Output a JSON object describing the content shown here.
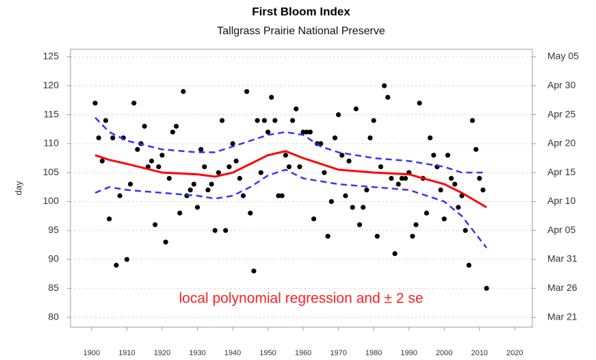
{
  "chart_data": {
    "type": "scatter",
    "title": "First Bloom Index",
    "subtitle": "Tallgrass Prairie National Preserve",
    "y_label": "day",
    "annotation": "local polynomial regression and ± 2 se",
    "xlim": [
      1894,
      2025
    ],
    "xticks": [
      1900,
      1910,
      1920,
      1930,
      1940,
      1950,
      1960,
      1970,
      1980,
      1990,
      2000,
      2010,
      2020
    ],
    "ylim": [
      78.3,
      126.3
    ],
    "yticks": [
      80,
      85,
      90,
      95,
      100,
      105,
      110,
      115,
      120,
      125
    ],
    "y2lim": [
      78.3,
      126.3
    ],
    "y2ticks": [
      {
        "value": 80,
        "label": "Mar 21"
      },
      {
        "value": 85,
        "label": "Mar 26"
      },
      {
        "value": 90,
        "label": "Mar 31"
      },
      {
        "value": 95,
        "label": "Apr 05"
      },
      {
        "value": 100,
        "label": "Apr 10"
      },
      {
        "value": 105,
        "label": "Apr 15"
      },
      {
        "value": 110,
        "label": "Apr 20"
      },
      {
        "value": 115,
        "label": "Apr 25"
      },
      {
        "value": 120,
        "label": "Apr 30"
      },
      {
        "value": 125,
        "label": "May 05"
      }
    ],
    "grid": true,
    "points": {
      "color": "#000000",
      "x": [
        1901,
        1902,
        1903,
        1904,
        1905,
        1906,
        1907,
        1908,
        1909,
        1910,
        1911,
        1912,
        1913,
        1914,
        1915,
        1916,
        1917,
        1918,
        1919,
        1920,
        1921,
        1922,
        1923,
        1924,
        1925,
        1926,
        1927,
        1928,
        1929,
        1930,
        1931,
        1932,
        1933,
        1934,
        1935,
        1936,
        1937,
        1938,
        1939,
        1940,
        1941,
        1942,
        1943,
        1944,
        1945,
        1946,
        1947,
        1948,
        1949,
        1950,
        1951,
        1952,
        1953,
        1954,
        1955,
        1956,
        1957,
        1958,
        1959,
        1960,
        1961,
        1962,
        1963,
        1964,
        1965,
        1966,
        1967,
        1968,
        1969,
        1970,
        1971,
        1972,
        1973,
        1974,
        1975,
        1976,
        1977,
        1978,
        1979,
        1980,
        1981,
        1982,
        1983,
        1984,
        1985,
        1986,
        1987,
        1988,
        1989,
        1990,
        1991,
        1992,
        1993,
        1994,
        1995,
        1996,
        1997,
        1998,
        1999,
        2000,
        2001,
        2002,
        2003,
        2004,
        2005,
        2006,
        2007,
        2008,
        2009,
        2010,
        2011,
        2012
      ],
      "values": [
        117,
        111,
        107,
        114,
        97,
        111,
        89,
        101,
        111,
        90,
        103,
        117,
        109,
        110,
        113,
        106,
        107,
        96,
        106,
        108,
        93,
        104,
        112,
        113,
        98,
        119,
        101,
        102,
        103,
        99,
        109,
        106,
        102,
        103,
        95,
        105,
        114,
        95,
        106,
        110,
        107,
        104,
        101,
        119,
        98,
        88,
        114,
        105,
        114,
        112,
        118,
        114,
        101,
        101,
        108,
        106,
        114,
        116,
        106,
        112,
        112,
        112,
        97,
        110,
        110,
        105,
        94,
        100,
        111,
        115,
        108,
        101,
        107,
        99,
        116,
        96,
        99,
        102,
        111,
        114,
        94,
        106,
        120,
        118,
        104,
        91,
        103,
        104,
        104,
        105,
        94,
        96,
        117,
        104,
        98,
        111,
        108,
        106,
        102,
        97,
        108,
        104,
        103,
        99,
        101,
        95,
        89,
        114,
        109,
        104,
        102,
        85
      ]
    },
    "fit": {
      "color": "#ff0000",
      "band_color": "#3333ff",
      "x": [
        1901,
        1905,
        1910,
        1920,
        1930,
        1935,
        1940,
        1945,
        1950,
        1955,
        1960,
        1965,
        1970,
        1980,
        1990,
        2000,
        2005,
        2012
      ],
      "values": [
        108,
        107.2,
        106.5,
        105,
        104.7,
        104.3,
        105,
        106.5,
        108,
        108.7,
        107.5,
        106.5,
        105.5,
        105,
        104.7,
        103,
        101.5,
        99
      ],
      "upper": [
        114.5,
        112,
        110.5,
        109,
        108.5,
        108.5,
        109.5,
        110.5,
        111.5,
        112,
        111.5,
        109.5,
        108.5,
        107.5,
        107,
        106,
        105,
        105
      ],
      "lower": [
        101.5,
        102.5,
        102,
        101.5,
        101,
        100.5,
        101,
        102.5,
        104.5,
        105.5,
        104,
        103.5,
        103,
        102.5,
        102,
        100,
        97.5,
        92
      ]
    }
  }
}
